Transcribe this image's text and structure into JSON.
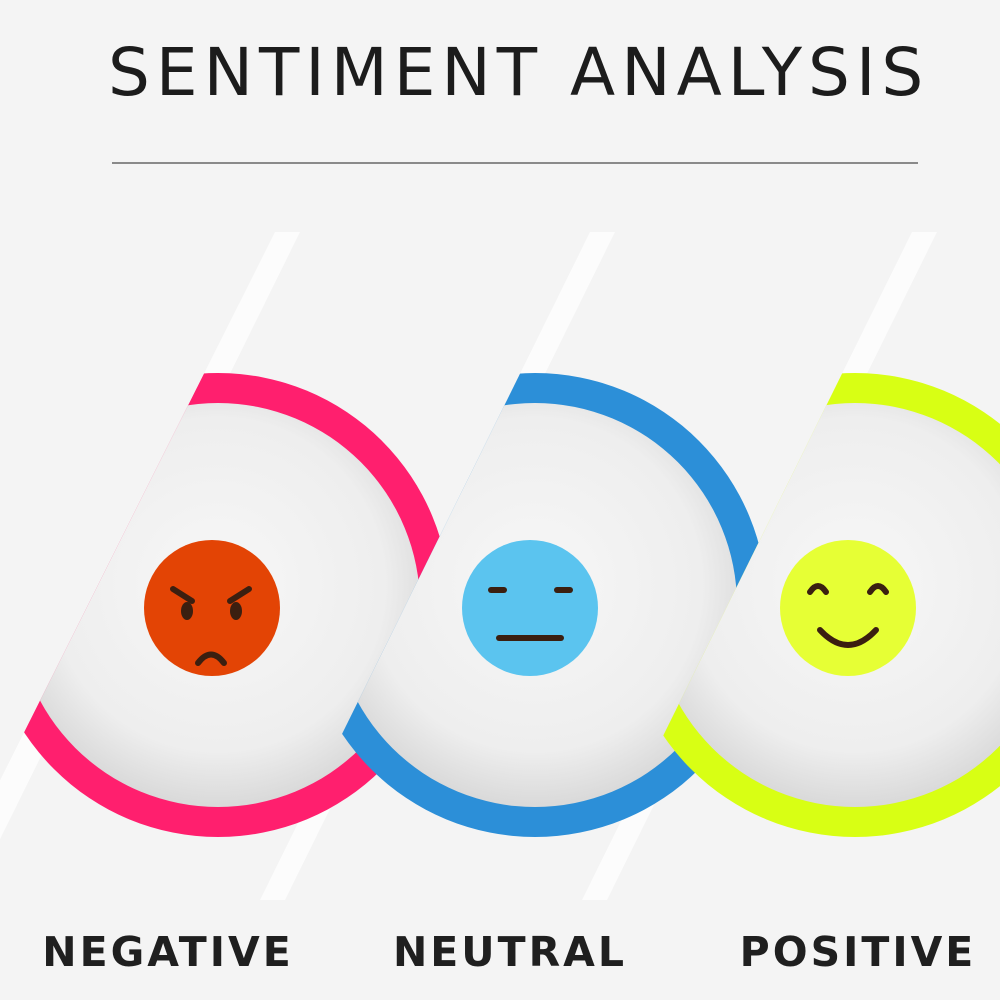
{
  "title": "SENTIMENT ANALYSIS",
  "sentiments": [
    {
      "label": "NEGATIVE",
      "face": "angry-face-icon",
      "ring_color": "#ff1f6e",
      "face_color": "#e34405"
    },
    {
      "label": "NEUTRAL",
      "face": "neutral-face-icon",
      "ring_color": "#2c8fd8",
      "face_color": "#5bc4ef"
    },
    {
      "label": "POSITIVE",
      "face": "smiling-face-icon",
      "ring_color": "#d8ff14",
      "face_color": "#e6ff35"
    }
  ],
  "colors": {
    "background": "#f4f4f4",
    "text": "#1c1c1c",
    "divider": "#8a8a8a",
    "feature_stroke": "#3b1f10"
  }
}
